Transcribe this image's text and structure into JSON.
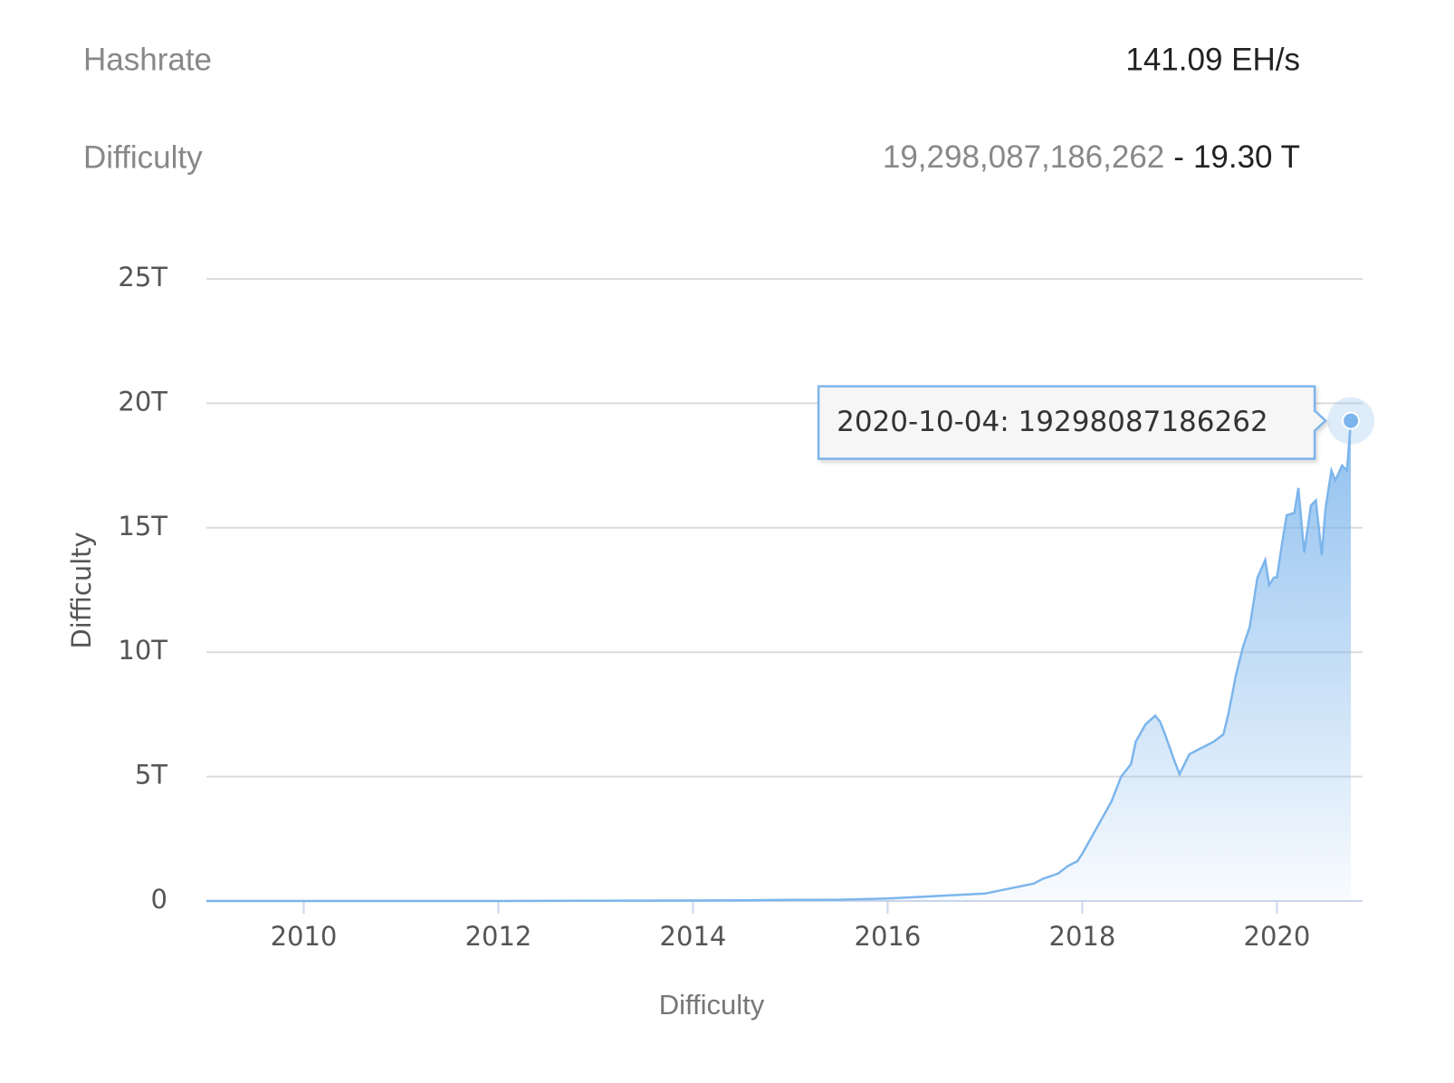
{
  "header": {
    "hashrate_label": "Hashrate",
    "hashrate_value": "141.09 EH/s",
    "difficulty_label": "Difficulty",
    "difficulty_raw": "19,298,087,186,262",
    "separator": "-",
    "difficulty_short": "19.30 T"
  },
  "chart_data": {
    "type": "area",
    "ylabel": "Difficulty",
    "xlabel": "Difficulty",
    "tooltip": "2020-10-04: 19298087186262",
    "color": "#7cb5ec",
    "grid": true,
    "x": [
      2009.0,
      2012.0,
      2014.0,
      2014.5,
      2015.0,
      2015.5,
      2016.0,
      2016.5,
      2017.0,
      2017.25,
      2017.5,
      2017.6,
      2017.75,
      2017.85,
      2017.95,
      2018.0,
      2018.1,
      2018.2,
      2018.3,
      2018.4,
      2018.5,
      2018.55,
      2018.65,
      2018.75,
      2018.8,
      2018.85,
      2018.95,
      2019.0,
      2019.1,
      2019.2,
      2019.35,
      2019.45,
      2019.5,
      2019.58,
      2019.65,
      2019.72,
      2019.8,
      2019.88,
      2019.92,
      2019.97,
      2020.0,
      2020.05,
      2020.1,
      2020.18,
      2020.22,
      2020.28,
      2020.35,
      2020.4,
      2020.46,
      2020.5,
      2020.56,
      2020.6,
      2020.67,
      2020.72,
      2020.76
    ],
    "values": [
      0,
      0,
      0.02,
      0.03,
      0.045,
      0.05,
      0.1,
      0.2,
      0.3,
      0.5,
      0.7,
      0.9,
      1.1,
      1.4,
      1.6,
      1.9,
      2.6,
      3.3,
      4.0,
      5.0,
      5.5,
      6.4,
      7.1,
      7.45,
      7.2,
      6.7,
      5.6,
      5.1,
      5.9,
      6.1,
      6.4,
      6.7,
      7.5,
      9.1,
      10.2,
      11.0,
      13.0,
      13.7,
      12.7,
      13.0,
      13.0,
      14.3,
      15.5,
      15.6,
      16.6,
      14.0,
      15.9,
      16.1,
      13.9,
      15.8,
      17.3,
      16.9,
      17.5,
      17.3,
      19.3
    ],
    "xlim": [
      2009.0,
      2020.88
    ],
    "xticks": [
      2010,
      2012,
      2014,
      2016,
      2018,
      2020
    ],
    "ylim": [
      0,
      25
    ],
    "yticks": [
      0,
      {
        "value": 5,
        "label": "5T"
      },
      {
        "value": 10,
        "label": "10T"
      },
      {
        "value": 15,
        "label": "15T"
      },
      {
        "value": 20,
        "label": "20T"
      },
      {
        "value": 25,
        "label": "25T"
      }
    ]
  }
}
